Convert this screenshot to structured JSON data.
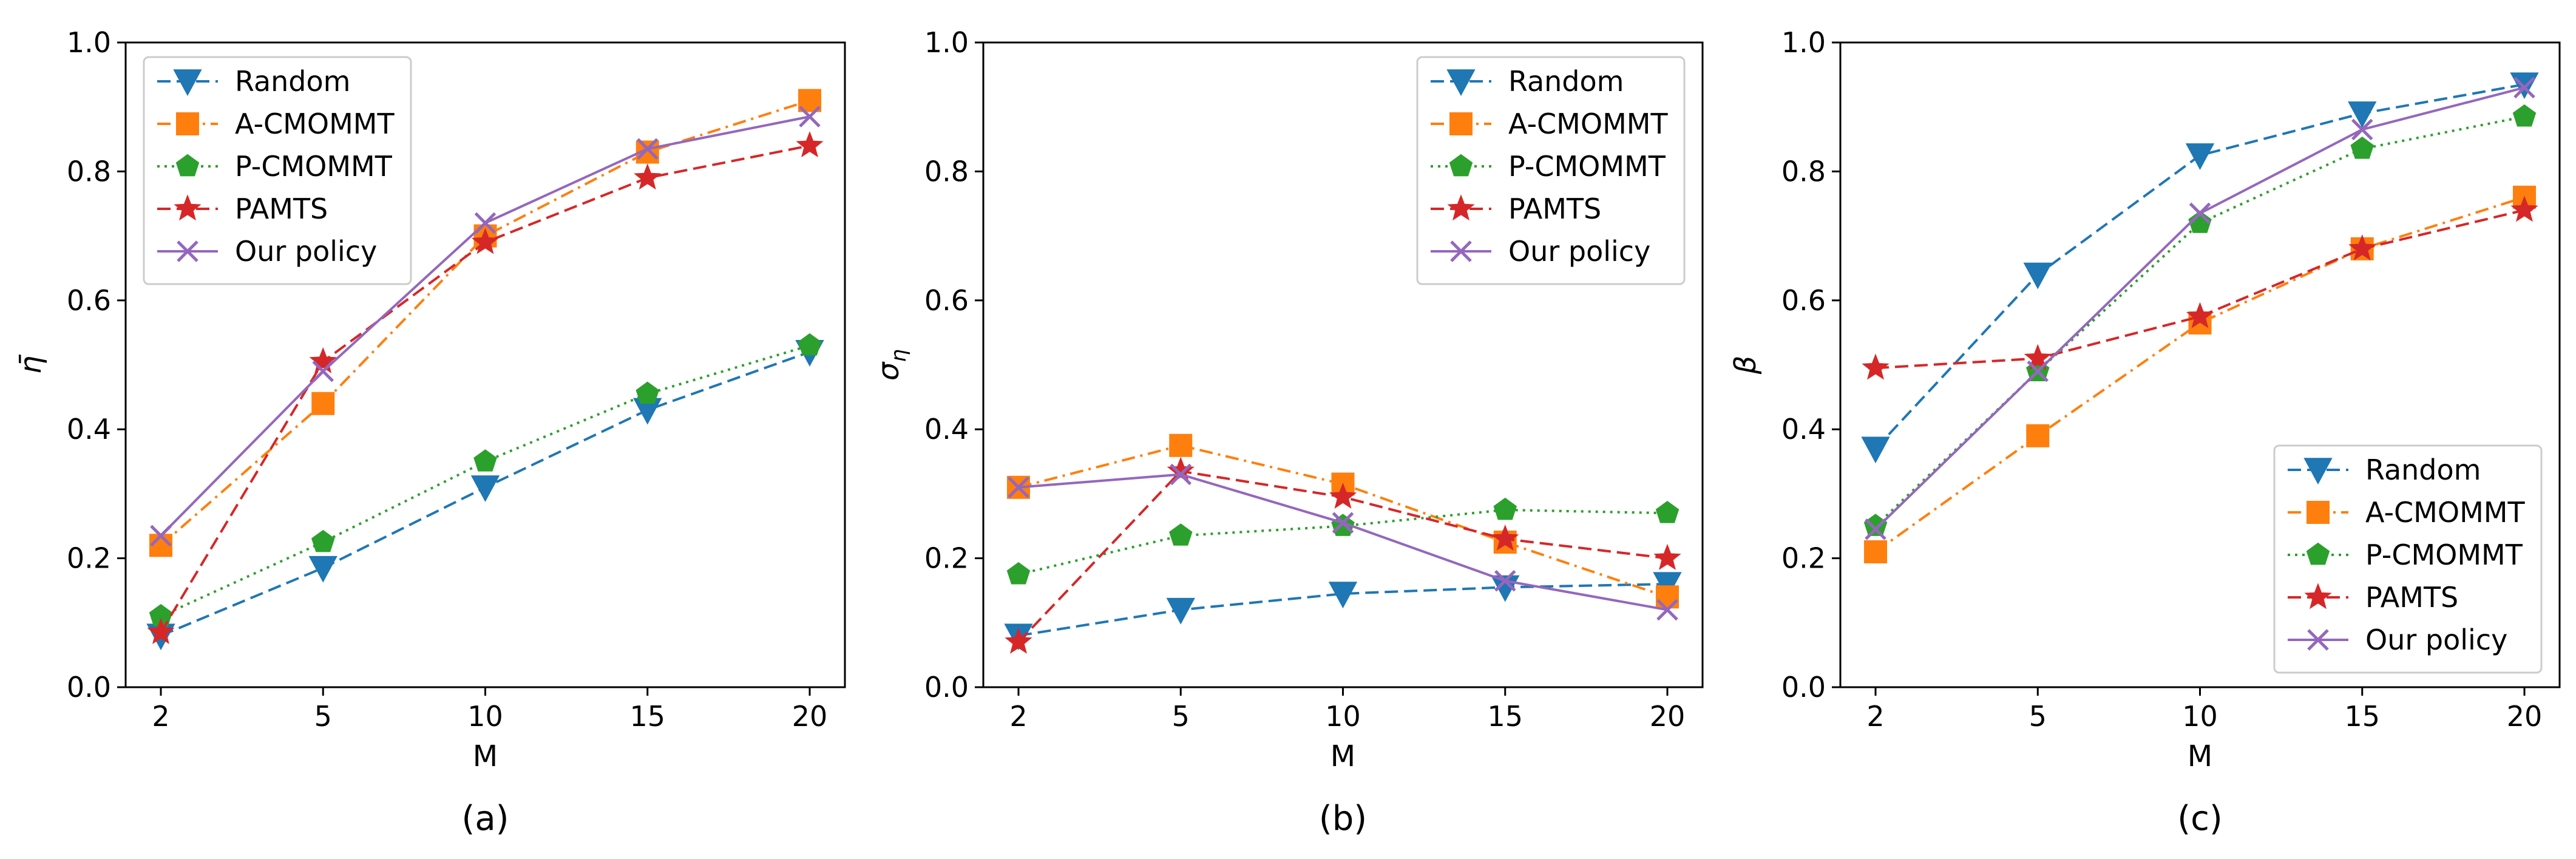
{
  "figure": {
    "series_styles": [
      {
        "name": "Random",
        "color": "#1f77b4",
        "marker": "triangle-down",
        "dash": "dashed"
      },
      {
        "name": "A-CMOMMT",
        "color": "#ff7f0e",
        "marker": "square",
        "dash": "dashdot"
      },
      {
        "name": "P-CMOMMT",
        "color": "#2ca02c",
        "marker": "pentagon",
        "dash": "dotted"
      },
      {
        "name": "PAMTS",
        "color": "#d62728",
        "marker": "star",
        "dash": "dashed"
      },
      {
        "name": "Our policy",
        "color": "#9467bd",
        "marker": "x",
        "dash": "solid"
      }
    ]
  },
  "chart_data": [
    {
      "type": "line",
      "caption": "(a)",
      "xlabel": "M",
      "ylabel": "η̄",
      "categories": [
        "2",
        "5",
        "10",
        "15",
        "20"
      ],
      "ylim": [
        0.0,
        1.0
      ],
      "yticks": [
        "0.0",
        "0.2",
        "0.4",
        "0.6",
        "0.8",
        "1.0"
      ],
      "legend_loc": "upper-left",
      "series": [
        {
          "name": "Random",
          "values": [
            0.08,
            0.185,
            0.31,
            0.43,
            0.52
          ]
        },
        {
          "name": "A-CMOMMT",
          "values": [
            0.22,
            0.44,
            0.7,
            0.83,
            0.91
          ]
        },
        {
          "name": "P-CMOMMT",
          "values": [
            0.11,
            0.225,
            0.35,
            0.455,
            0.53
          ]
        },
        {
          "name": "PAMTS",
          "values": [
            0.085,
            0.505,
            0.69,
            0.79,
            0.84
          ]
        },
        {
          "name": "Our policy",
          "values": [
            0.235,
            0.49,
            0.72,
            0.835,
            0.885
          ]
        }
      ]
    },
    {
      "type": "line",
      "caption": "(b)",
      "xlabel": "M",
      "ylabel": "σ_η",
      "categories": [
        "2",
        "5",
        "10",
        "15",
        "20"
      ],
      "ylim": [
        0.0,
        1.0
      ],
      "yticks": [
        "0.0",
        "0.2",
        "0.4",
        "0.6",
        "0.8",
        "1.0"
      ],
      "legend_loc": "upper-right",
      "series": [
        {
          "name": "Random",
          "values": [
            0.08,
            0.12,
            0.145,
            0.155,
            0.16
          ]
        },
        {
          "name": "A-CMOMMT",
          "values": [
            0.31,
            0.375,
            0.315,
            0.225,
            0.14
          ]
        },
        {
          "name": "P-CMOMMT",
          "values": [
            0.175,
            0.235,
            0.25,
            0.275,
            0.27
          ]
        },
        {
          "name": "PAMTS",
          "values": [
            0.07,
            0.335,
            0.295,
            0.23,
            0.2
          ]
        },
        {
          "name": "Our policy",
          "values": [
            0.31,
            0.33,
            0.255,
            0.165,
            0.12
          ]
        }
      ]
    },
    {
      "type": "line",
      "caption": "(c)",
      "xlabel": "M",
      "ylabel": "β",
      "categories": [
        "2",
        "5",
        "10",
        "15",
        "20"
      ],
      "ylim": [
        0.0,
        1.0
      ],
      "yticks": [
        "0.0",
        "0.2",
        "0.4",
        "0.6",
        "0.8",
        "1.0"
      ],
      "legend_loc": "lower-right",
      "series": [
        {
          "name": "Random",
          "values": [
            0.37,
            0.64,
            0.825,
            0.89,
            0.935
          ]
        },
        {
          "name": "A-CMOMMT",
          "values": [
            0.21,
            0.39,
            0.565,
            0.68,
            0.76
          ]
        },
        {
          "name": "P-CMOMMT",
          "values": [
            0.25,
            0.49,
            0.72,
            0.835,
            0.885
          ]
        },
        {
          "name": "PAMTS",
          "values": [
            0.495,
            0.51,
            0.575,
            0.68,
            0.74
          ]
        },
        {
          "name": "Our policy",
          "values": [
            0.245,
            0.49,
            0.735,
            0.865,
            0.93
          ]
        }
      ]
    }
  ]
}
